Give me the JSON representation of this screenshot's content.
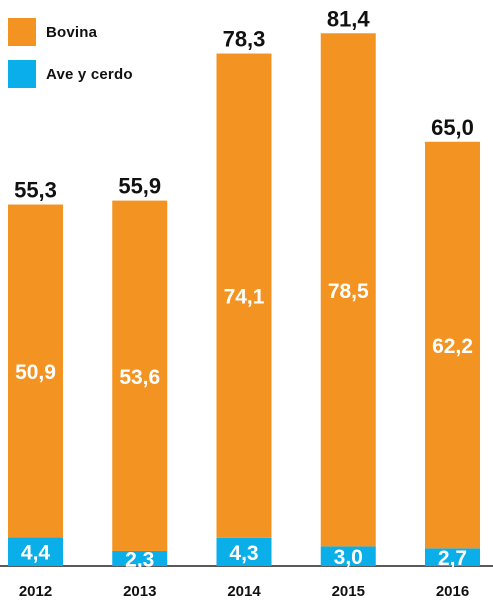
{
  "chart_data": {
    "type": "bar",
    "stacked": true,
    "categories": [
      "2012",
      "2013",
      "2014",
      "2015",
      "2016"
    ],
    "series": [
      {
        "name": "Ave y cerdo",
        "color": "#0aaee8",
        "values": [
          4.4,
          2.3,
          4.3,
          3.0,
          2.7
        ],
        "labels": [
          "4,4",
          "2,3",
          "4,3",
          "3,0",
          "2,7"
        ]
      },
      {
        "name": "Bovina",
        "color": "#f39422",
        "values": [
          50.9,
          53.6,
          74.1,
          78.5,
          62.2
        ],
        "labels": [
          "50,9",
          "53,6",
          "74,1",
          "78,5",
          "62,2"
        ]
      }
    ],
    "totals": [
      55.3,
      55.9,
      78.3,
      81.4,
      65.0
    ],
    "total_labels": [
      "55,3",
      "55,9",
      "78,3",
      "81,4",
      "65,0"
    ],
    "ylim": [
      0,
      82
    ],
    "legend": "top-left",
    "grid": false
  }
}
